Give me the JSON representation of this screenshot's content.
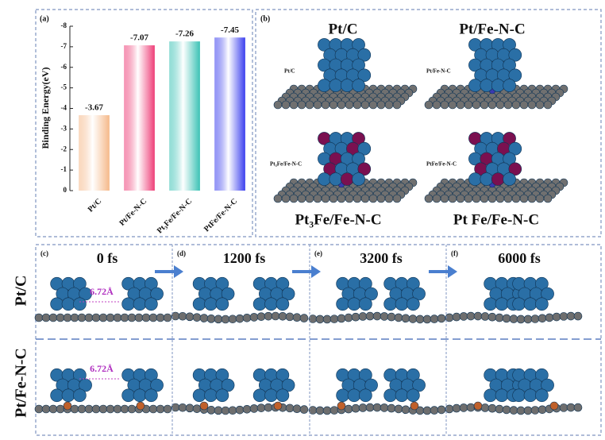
{
  "chart_data": {
    "type": "bar",
    "label": "(a)",
    "y_label": "Binding Energy(eV)",
    "categories": [
      "Pt/C",
      "Pt/Fe-N-C",
      "Pt₃Fe/Fe-N-C",
      "PtFe/Fe-N-C"
    ],
    "values": [
      -3.67,
      -7.07,
      -7.26,
      -7.45
    ],
    "colors": [
      "#f5b98a",
      "#ee3f78",
      "#3cc2b5",
      "#3c40ee"
    ],
    "ylim": [
      0,
      -8
    ],
    "yticks": [
      0,
      -1,
      -2,
      -3,
      -4,
      -5,
      -6,
      -7,
      -8
    ]
  },
  "panel_b": {
    "label": "(b)",
    "structures": [
      {
        "title": "Pt/C",
        "tag": "Pt/C"
      },
      {
        "title": "Pt/Fe-N-C",
        "tag": "Pt/Fe-N-C"
      },
      {
        "title": "Pt₃Fe/Fe-N-C",
        "tag": "Pt₃Fe/Fe-N-C"
      },
      {
        "title": "Pt Fe/Fe-N-C",
        "tag": "PtFe/Fe-N-C"
      }
    ]
  },
  "panel_c": {
    "frames": [
      {
        "label": "(c)",
        "time": "0 fs"
      },
      {
        "label": "(d)",
        "time": "1200 fs"
      },
      {
        "label": "(e)",
        "time": "3200 fs"
      },
      {
        "label": "(f)",
        "time": "6000 fs"
      }
    ],
    "rows": [
      "Pt/C",
      "Pt/Fe-N-C"
    ],
    "distance": "6.72Å"
  }
}
